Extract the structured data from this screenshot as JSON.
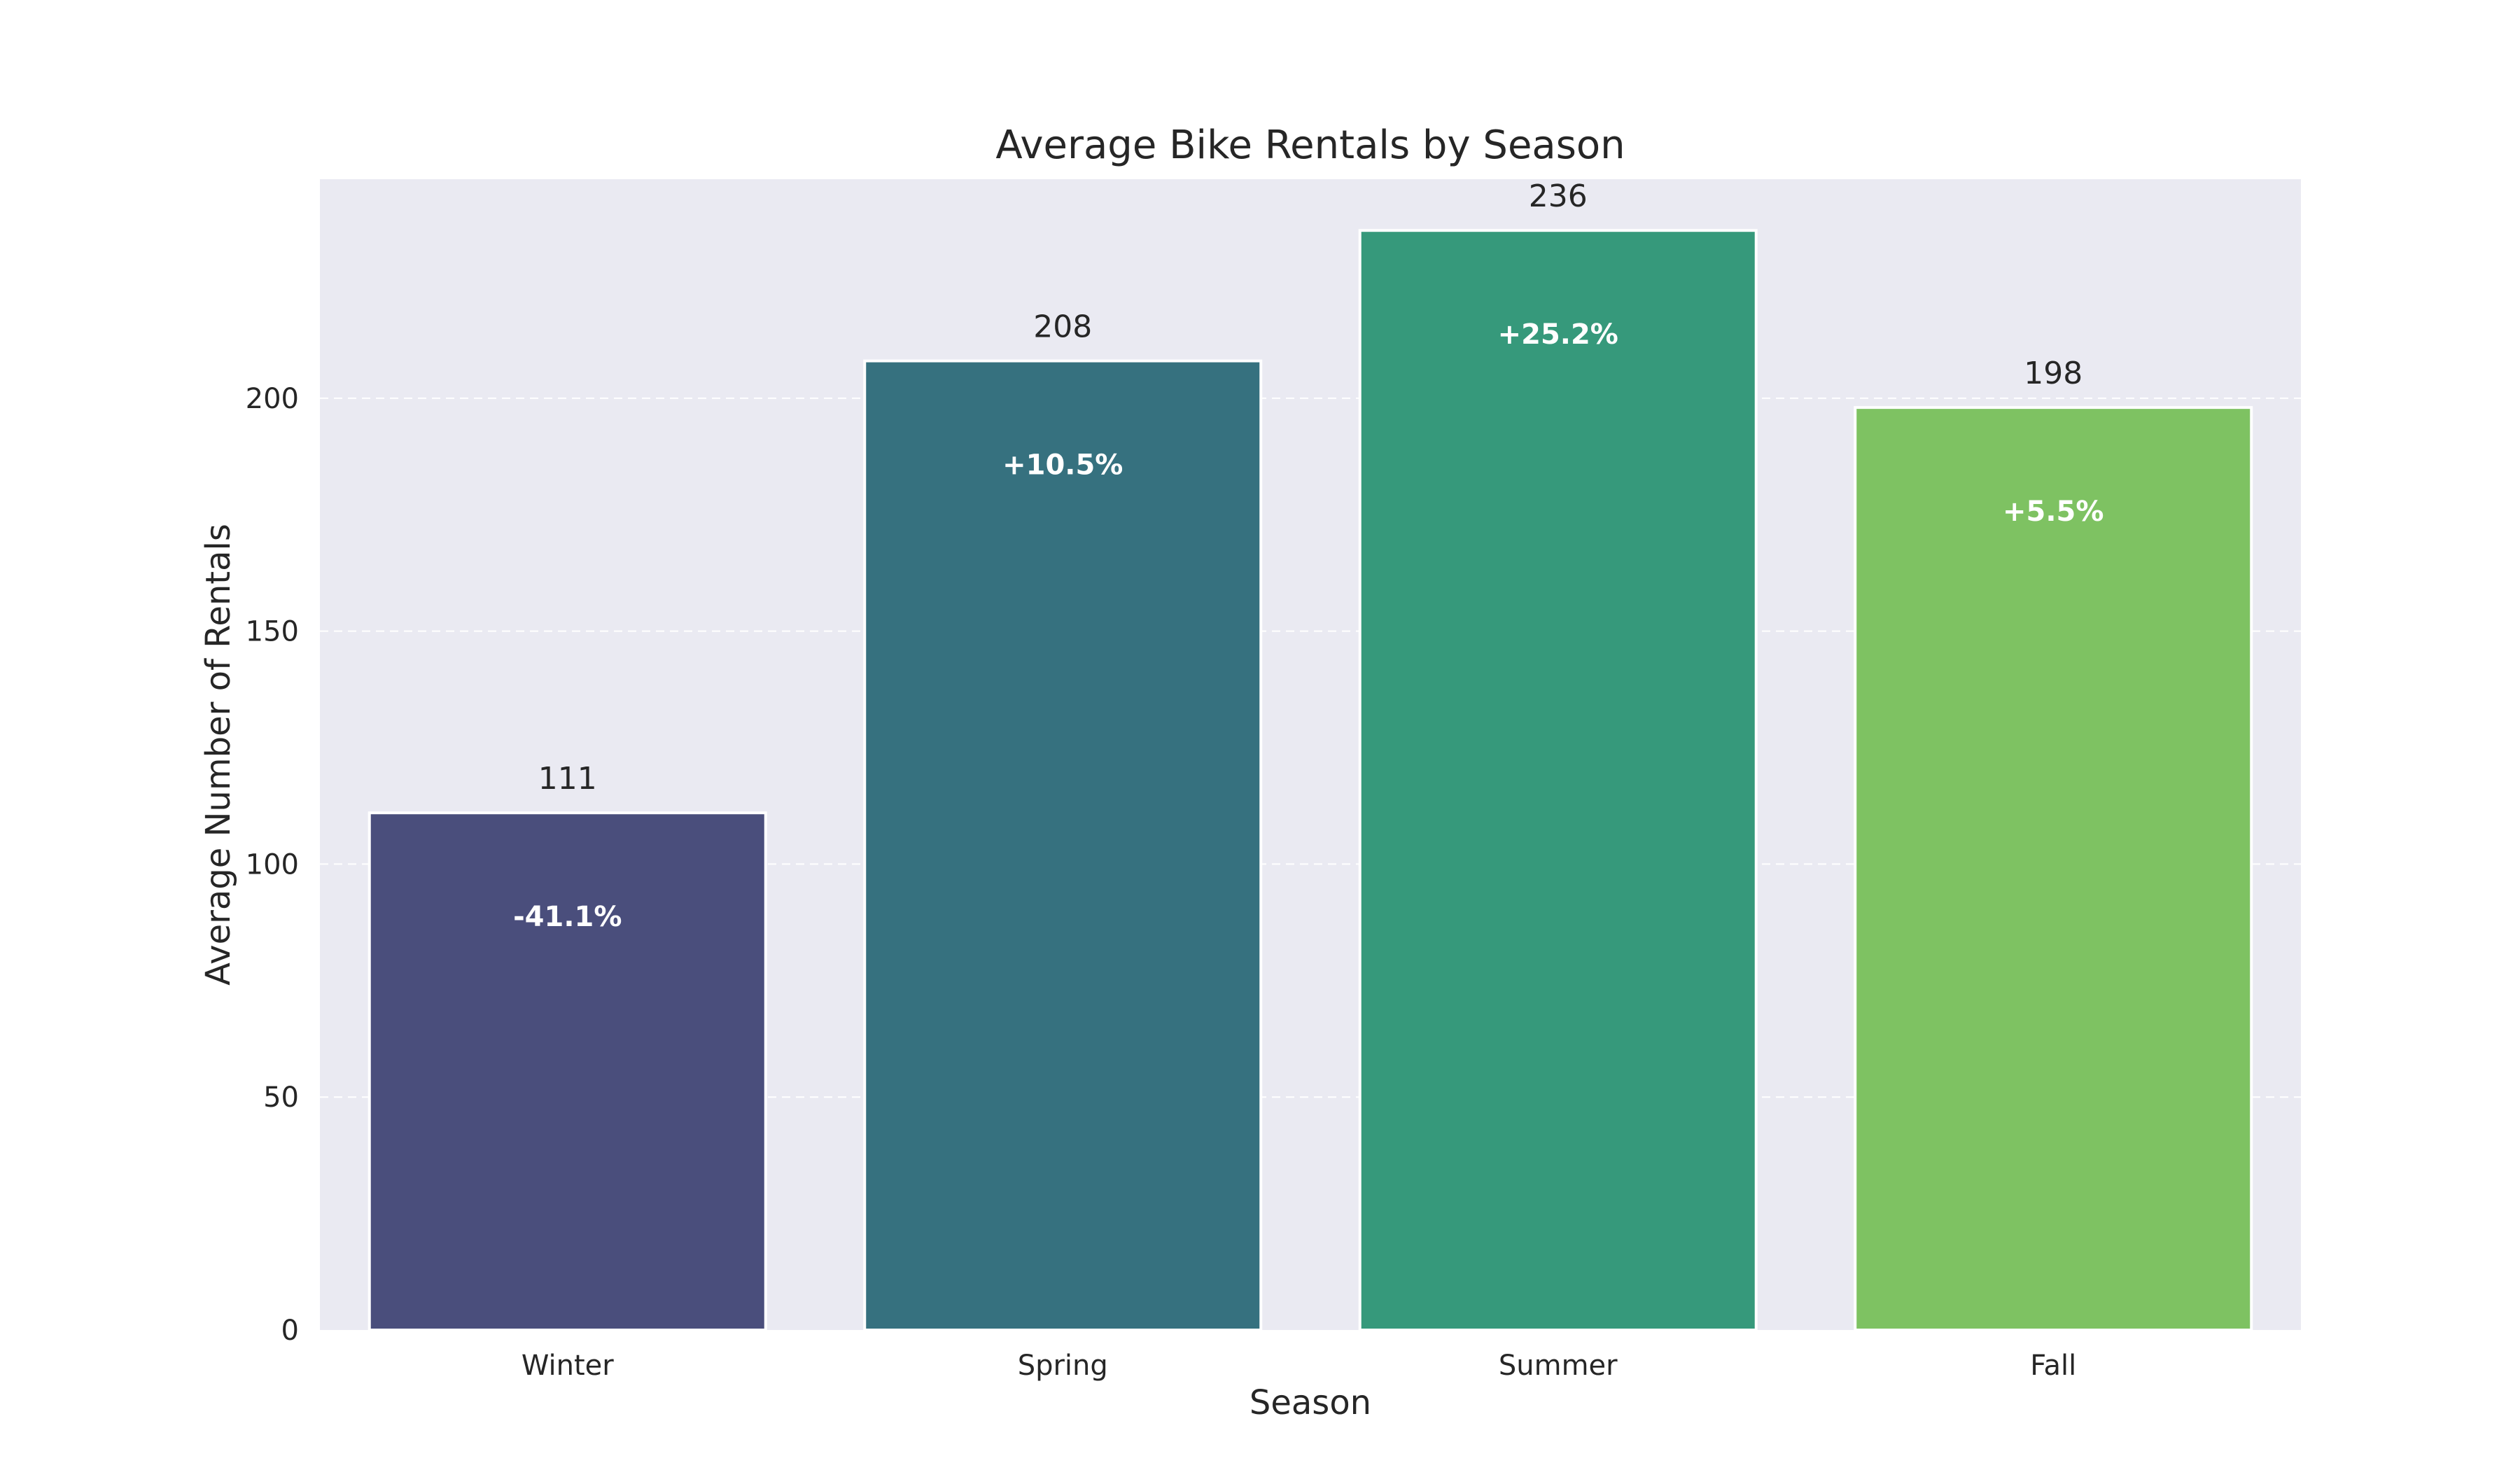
{
  "chart_data": {
    "type": "bar",
    "title": "Average Bike Rentals by Season",
    "xlabel": "Season",
    "ylabel": "Average Number of Rentals",
    "categories": [
      "Winter",
      "Spring",
      "Summer",
      "Fall"
    ],
    "values": [
      111,
      208,
      236,
      198
    ],
    "value_labels": [
      "111",
      "208",
      "236",
      "198"
    ],
    "change_labels": [
      "-41.1%",
      "+10.5%",
      "+25.2%",
      "+5.5%"
    ],
    "colors": [
      "#4a4e7c",
      "#36717f",
      "#36997b",
      "#7ec262"
    ],
    "ylim": [
      0,
      247
    ],
    "yticks": [
      0,
      50,
      100,
      150,
      200
    ],
    "ytick_labels": [
      "0",
      "50",
      "100",
      "150",
      "200"
    ],
    "grid": true,
    "gridlines": "horizontal, dashed",
    "background_color": "#eaeaf2"
  }
}
